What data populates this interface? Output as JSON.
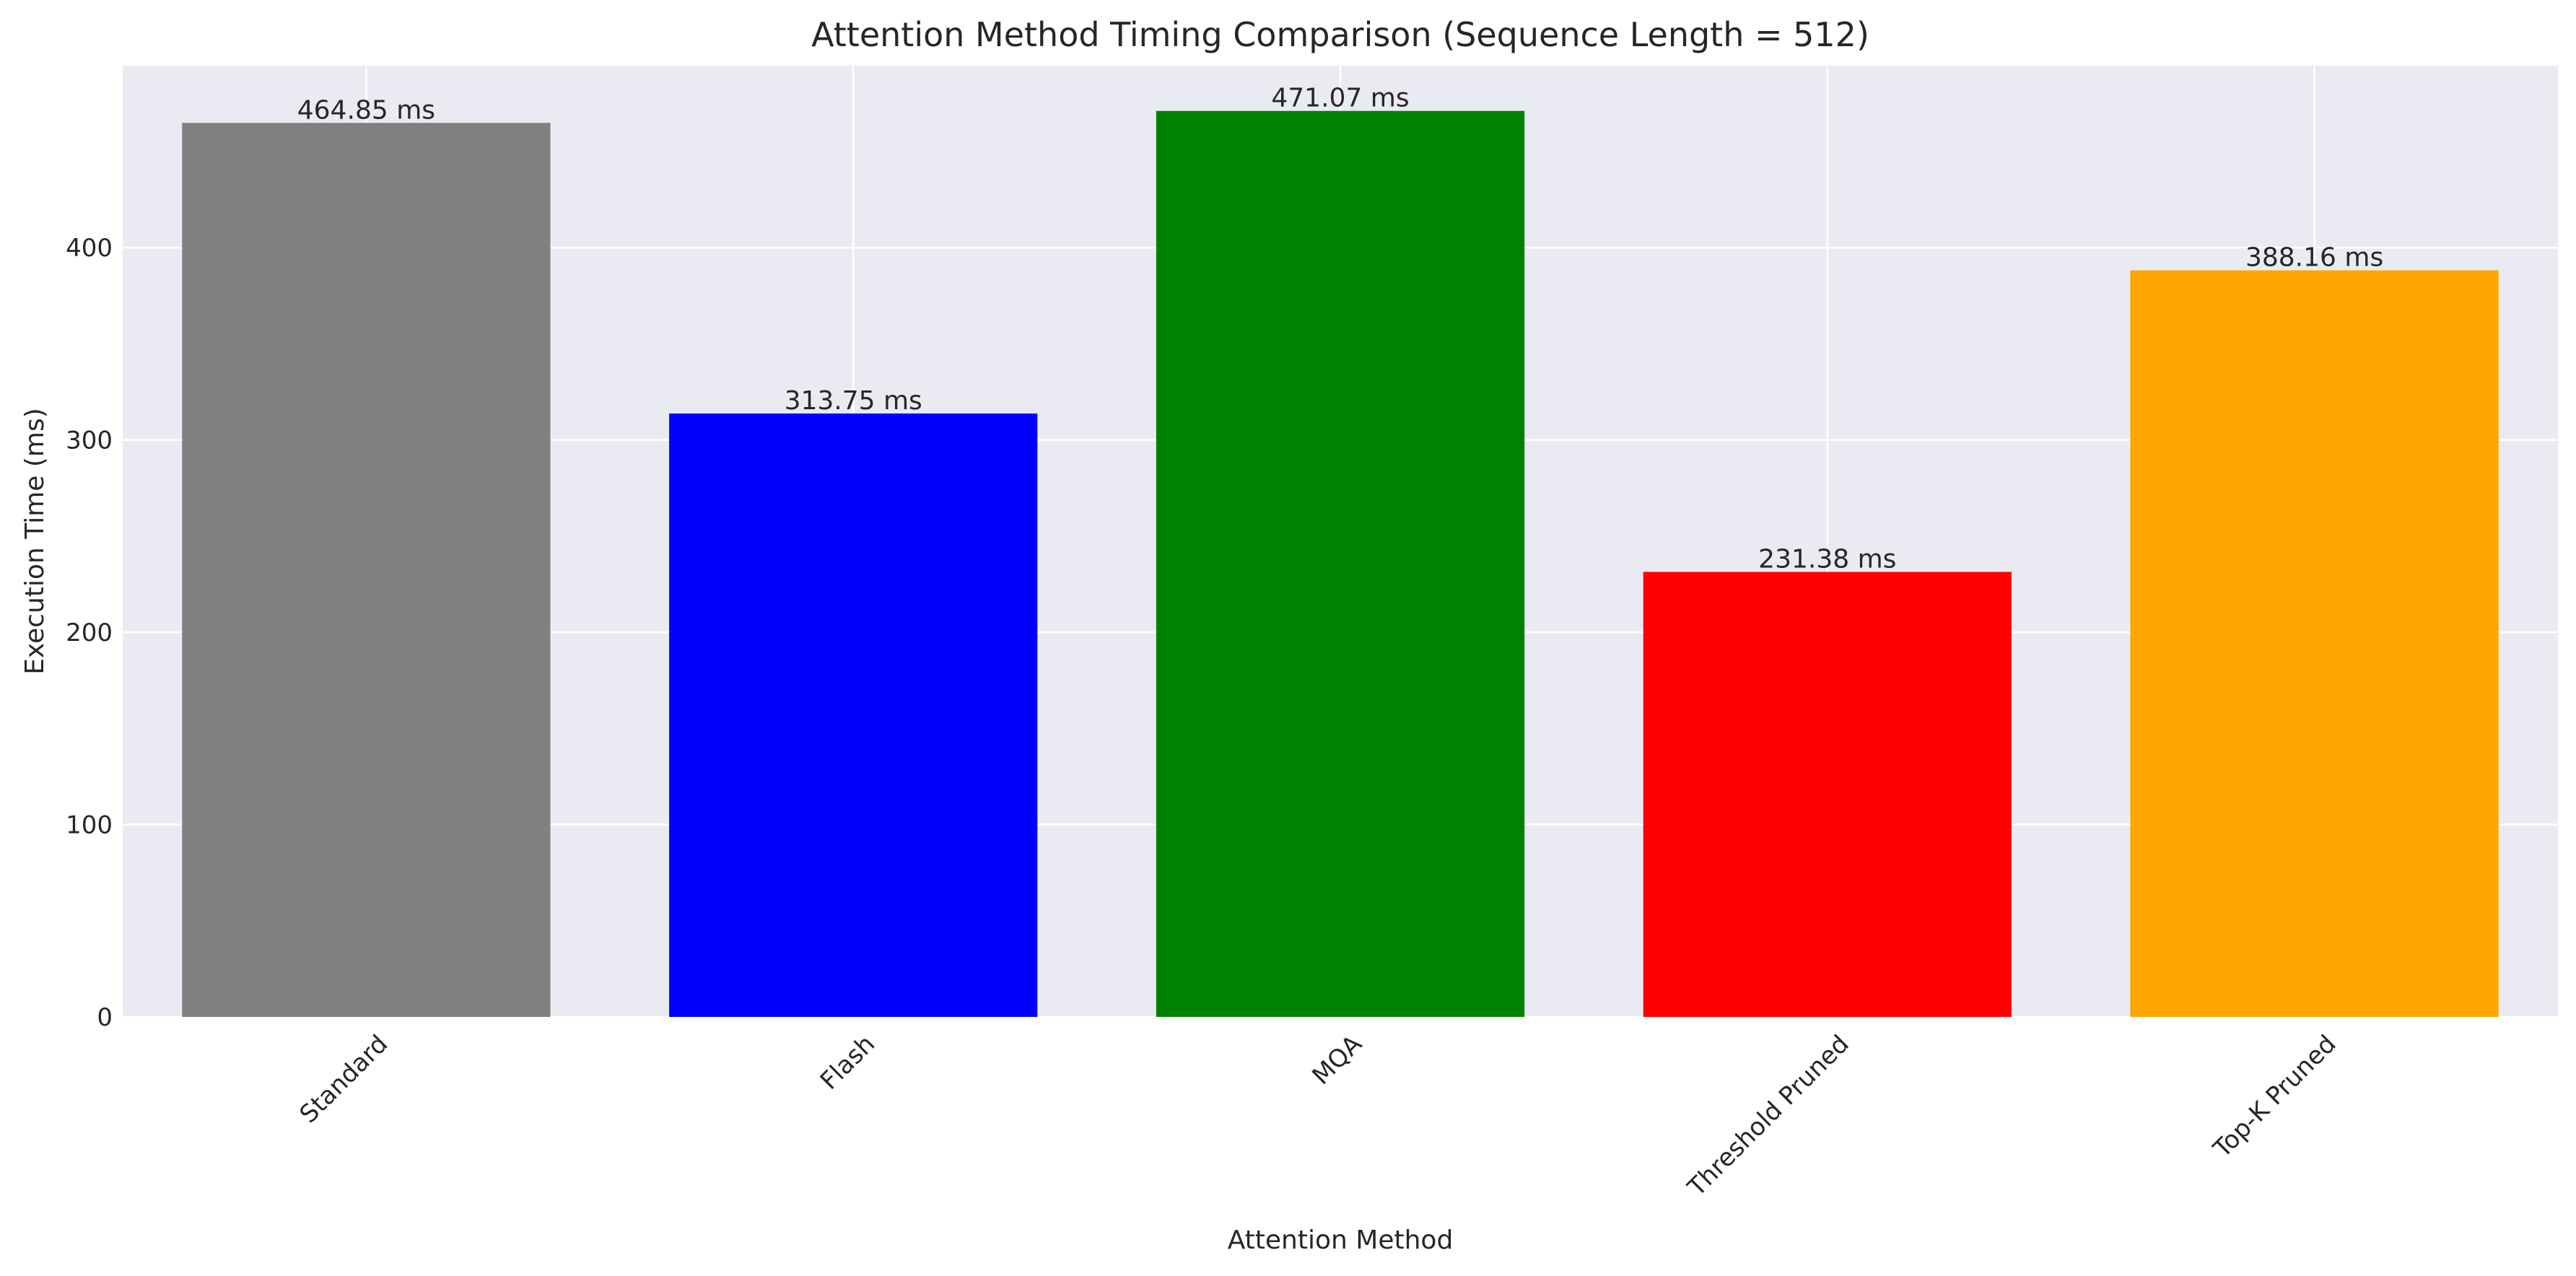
{
  "chart_data": {
    "type": "bar",
    "title": "Attention Method Timing Comparison (Sequence Length = 512)",
    "xlabel": "Attention Method",
    "ylabel": "Execution Time (ms)",
    "categories": [
      "Standard",
      "Flash",
      "MQA",
      "Threshold Pruned",
      "Top-K Pruned"
    ],
    "values": [
      464.85,
      313.75,
      471.07,
      231.38,
      388.16
    ],
    "value_labels": [
      "464.85 ms",
      "313.75 ms",
      "471.07 ms",
      "231.38 ms",
      "388.16 ms"
    ],
    "colors": [
      "#808080",
      "#0000ff",
      "#008000",
      "#ff0000",
      "#ffa500"
    ],
    "y_ticks": [
      0,
      100,
      200,
      300,
      400
    ],
    "y_tick_labels": [
      "0",
      "100",
      "200",
      "300",
      "400"
    ],
    "ylim": [
      0,
      494.6
    ],
    "grid": true,
    "background_color": "#eaeaf2",
    "grid_color": "#ffffff"
  }
}
